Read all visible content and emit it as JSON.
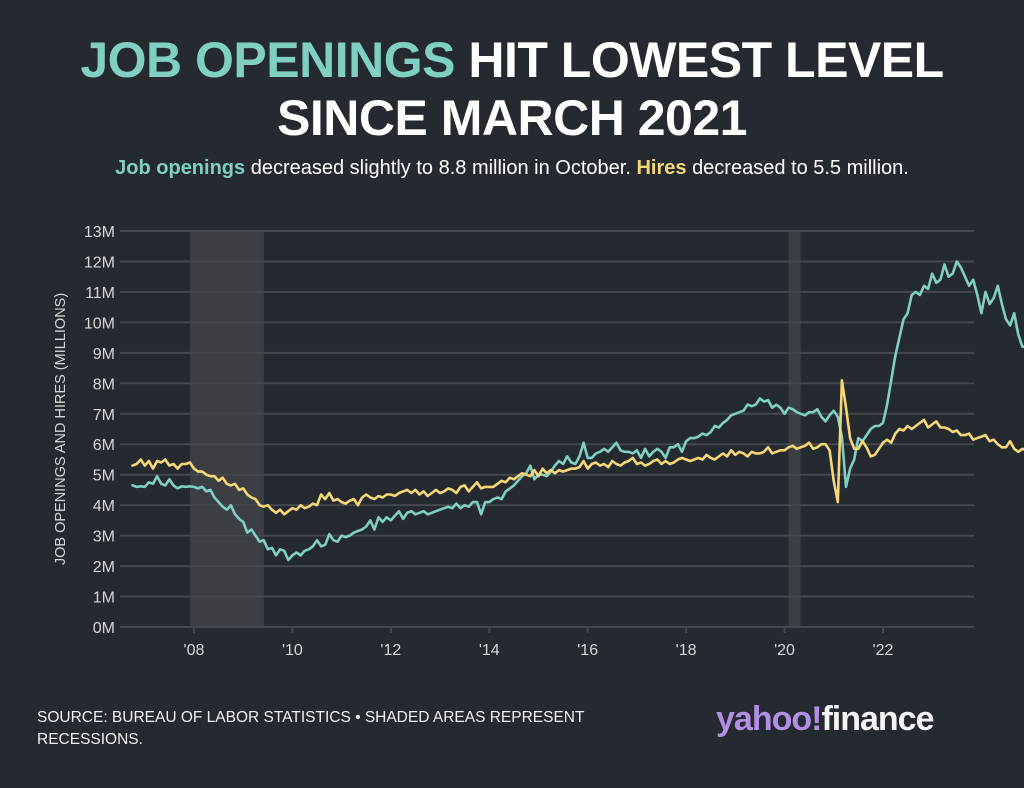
{
  "header": {
    "title_accent": "JOB OPENINGS",
    "title_rest": "HIT LOWEST LEVEL",
    "title_line2": "SINCE MARCH 2021",
    "subtitle_openings": "Job openings",
    "subtitle_mid": "decreased slightly to 8.8 million in October.",
    "subtitle_hires": "Hires",
    "subtitle_end": "decreased to 5.5 million."
  },
  "footer": {
    "source": "SOURCE: BUREAU OF LABOR STATISTICS • SHADED AREAS REPRESENT RECESSIONS.",
    "logo_yahoo": "yahoo!",
    "logo_finance": "finance"
  },
  "colors": {
    "background": "#252930",
    "openings": "#7fcfc3",
    "hires": "#f5d776",
    "recession": "#3b3e42",
    "grid": "#45484d",
    "logo_purple": "#b38ee6"
  },
  "chart_data": {
    "type": "line",
    "title": "Job openings hit lowest level since March 2021",
    "xlabel": "",
    "ylabel": "JOB OPENINGS AND HIRES (MILLIONS)",
    "xlim": [
      2006.7,
      2023.85
    ],
    "ylim": [
      0,
      13
    ],
    "grid": true,
    "y_ticks": [
      0,
      1,
      2,
      3,
      4,
      5,
      6,
      7,
      8,
      9,
      10,
      11,
      12,
      13
    ],
    "y_tick_labels": [
      "0M",
      "1M",
      "2M",
      "3M",
      "4M",
      "5M",
      "6M",
      "7M",
      "8M",
      "9M",
      "10M",
      "11M",
      "12M",
      "13M"
    ],
    "x_ticks": [
      2008,
      2010,
      2012,
      2014,
      2016,
      2018,
      2020,
      2022
    ],
    "x_tick_labels": [
      "'08",
      "'10",
      "'12",
      "'14",
      "'16",
      "'18",
      "'20",
      "'22"
    ],
    "recessions": [
      {
        "start": 2007.92,
        "end": 2009.42,
        "label": "Great Recession"
      },
      {
        "start": 2020.08,
        "end": 2020.33,
        "label": "COVID-19 recession"
      }
    ],
    "x_start": 2006.75,
    "x_step_months": 1,
    "series": [
      {
        "name": "Job openings",
        "color": "#7fcfc3",
        "values": [
          4.65,
          4.6,
          4.62,
          4.6,
          4.75,
          4.7,
          4.95,
          4.7,
          4.65,
          4.85,
          4.65,
          4.55,
          4.62,
          4.6,
          4.62,
          4.6,
          4.55,
          4.6,
          4.45,
          4.5,
          4.25,
          4.1,
          3.95,
          3.85,
          4.0,
          3.7,
          3.55,
          3.45,
          3.1,
          3.2,
          3.0,
          2.8,
          2.85,
          2.55,
          2.6,
          2.35,
          2.55,
          2.5,
          2.2,
          2.35,
          2.45,
          2.35,
          2.5,
          2.55,
          2.65,
          2.85,
          2.65,
          2.7,
          3.05,
          2.85,
          2.8,
          3.0,
          2.95,
          3.0,
          3.1,
          3.15,
          3.2,
          3.3,
          3.5,
          3.2,
          3.6,
          3.45,
          3.6,
          3.5,
          3.65,
          3.8,
          3.55,
          3.75,
          3.8,
          3.7,
          3.75,
          3.8,
          3.7,
          3.75,
          3.8,
          3.85,
          3.9,
          3.95,
          3.9,
          4.05,
          3.9,
          4.0,
          3.95,
          4.1,
          4.1,
          3.7,
          4.1,
          4.1,
          4.2,
          4.25,
          4.2,
          4.45,
          4.55,
          4.65,
          4.8,
          4.95,
          5.05,
          5.3,
          4.85,
          5.0,
          5.0,
          4.95,
          5.1,
          5.3,
          5.45,
          5.35,
          5.6,
          5.4,
          5.35,
          5.6,
          6.05,
          5.55,
          5.55,
          5.7,
          5.75,
          5.85,
          5.75,
          5.9,
          6.05,
          5.8,
          5.75,
          5.75,
          5.7,
          5.8,
          5.55,
          5.85,
          5.6,
          5.75,
          5.85,
          5.75,
          5.55,
          5.9,
          5.9,
          6.0,
          5.75,
          6.1,
          6.2,
          6.2,
          6.25,
          6.35,
          6.3,
          6.4,
          6.6,
          6.55,
          6.7,
          6.8,
          6.95,
          7.0,
          7.05,
          7.1,
          7.3,
          7.25,
          7.3,
          7.5,
          7.4,
          7.45,
          7.2,
          7.3,
          7.2,
          7.0,
          7.2,
          7.15,
          7.05,
          7.0,
          6.95,
          7.05,
          7.05,
          7.15,
          6.9,
          6.75,
          6.95,
          7.1,
          6.9,
          6.25,
          4.6,
          5.2,
          5.5,
          6.2,
          6.1,
          6.3,
          6.5,
          6.6,
          6.6,
          6.7,
          7.3,
          8.1,
          8.9,
          9.5,
          10.1,
          10.3,
          10.9,
          11.0,
          10.9,
          11.2,
          11.1,
          11.6,
          11.3,
          11.4,
          11.9,
          11.5,
          11.6,
          12.0,
          11.8,
          11.5,
          11.2,
          11.4,
          10.9,
          10.3,
          11.0,
          10.6,
          10.8,
          11.2,
          10.6,
          10.1,
          9.9,
          10.3,
          9.6,
          9.2,
          9.2,
          9.6,
          9.5,
          9.0,
          8.8
        ]
      },
      {
        "name": "Hires",
        "color": "#f5d776",
        "values": [
          5.3,
          5.35,
          5.5,
          5.3,
          5.45,
          5.2,
          5.45,
          5.4,
          5.5,
          5.3,
          5.35,
          5.2,
          5.35,
          5.35,
          5.4,
          5.2,
          5.1,
          5.1,
          5.0,
          4.95,
          4.95,
          4.8,
          4.9,
          4.7,
          4.65,
          4.7,
          4.5,
          4.55,
          4.35,
          4.25,
          4.2,
          4.0,
          3.95,
          4.0,
          3.85,
          3.75,
          3.85,
          3.7,
          3.8,
          3.9,
          3.85,
          4.0,
          3.9,
          3.95,
          4.05,
          4.0,
          4.35,
          4.2,
          4.4,
          4.15,
          4.2,
          4.1,
          4.05,
          4.15,
          4.2,
          4.0,
          4.25,
          4.35,
          4.25,
          4.2,
          4.3,
          4.25,
          4.35,
          4.35,
          4.3,
          4.4,
          4.45,
          4.5,
          4.4,
          4.5,
          4.35,
          4.45,
          4.3,
          4.4,
          4.5,
          4.4,
          4.45,
          4.55,
          4.5,
          4.4,
          4.6,
          4.65,
          4.45,
          4.6,
          4.75,
          4.55,
          4.6,
          4.6,
          4.6,
          4.7,
          4.8,
          4.75,
          4.9,
          4.85,
          4.95,
          5.05,
          5.0,
          4.95,
          5.15,
          4.95,
          5.2,
          5.05,
          5.15,
          5.05,
          5.15,
          5.1,
          5.15,
          5.2,
          5.2,
          5.25,
          5.45,
          5.2,
          5.35,
          5.4,
          5.3,
          5.35,
          5.25,
          5.45,
          5.35,
          5.3,
          5.4,
          5.45,
          5.55,
          5.35,
          5.4,
          5.3,
          5.35,
          5.45,
          5.5,
          5.35,
          5.45,
          5.35,
          5.4,
          5.5,
          5.55,
          5.5,
          5.45,
          5.5,
          5.55,
          5.5,
          5.65,
          5.55,
          5.5,
          5.6,
          5.7,
          5.6,
          5.8,
          5.65,
          5.75,
          5.7,
          5.6,
          5.75,
          5.7,
          5.7,
          5.75,
          5.9,
          5.7,
          5.75,
          5.8,
          5.8,
          5.9,
          5.95,
          5.85,
          5.9,
          5.95,
          6.05,
          5.85,
          5.9,
          6.0,
          6.0,
          5.8,
          4.8,
          4.1,
          8.1,
          7.2,
          6.2,
          5.85,
          5.85,
          6.1,
          5.9,
          5.6,
          5.65,
          5.85,
          6.05,
          6.15,
          6.05,
          6.35,
          6.5,
          6.45,
          6.6,
          6.5,
          6.6,
          6.7,
          6.8,
          6.55,
          6.65,
          6.75,
          6.55,
          6.55,
          6.5,
          6.4,
          6.45,
          6.3,
          6.3,
          6.35,
          6.15,
          6.2,
          6.25,
          6.3,
          6.1,
          6.15,
          6.0,
          5.9,
          5.9,
          6.1,
          5.85,
          5.75,
          5.85,
          5.8,
          5.5
        ]
      }
    ]
  }
}
